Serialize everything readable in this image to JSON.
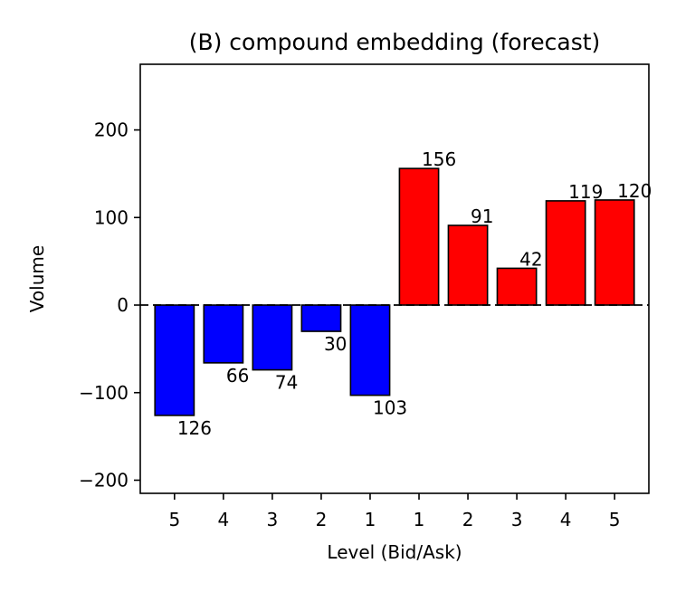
{
  "chart_data": {
    "type": "bar",
    "title": "(B) compound embedding (forecast)",
    "xlabel": "Level (Bid/Ask)",
    "ylabel": "Volume",
    "ylim": [
      -215,
      275
    ],
    "yticks": [
      -200,
      -100,
      0,
      100,
      200
    ],
    "ytick_labels": [
      "−200",
      "−100",
      "0",
      "100",
      "200"
    ],
    "categories": [
      "5",
      "4",
      "3",
      "2",
      "1",
      "1",
      "2",
      "3",
      "4",
      "5"
    ],
    "values": [
      -126,
      -66,
      -74,
      -30,
      -103,
      156,
      91,
      42,
      119,
      120
    ],
    "data_labels": [
      "126",
      "66",
      "74",
      "30",
      "103",
      "156",
      "91",
      "42",
      "119",
      "120"
    ],
    "colors": [
      "#0000ff",
      "#0000ff",
      "#0000ff",
      "#0000ff",
      "#0000ff",
      "#ff0000",
      "#ff0000",
      "#ff0000",
      "#ff0000",
      "#ff0000"
    ],
    "zero_line": true,
    "grid": false
  }
}
